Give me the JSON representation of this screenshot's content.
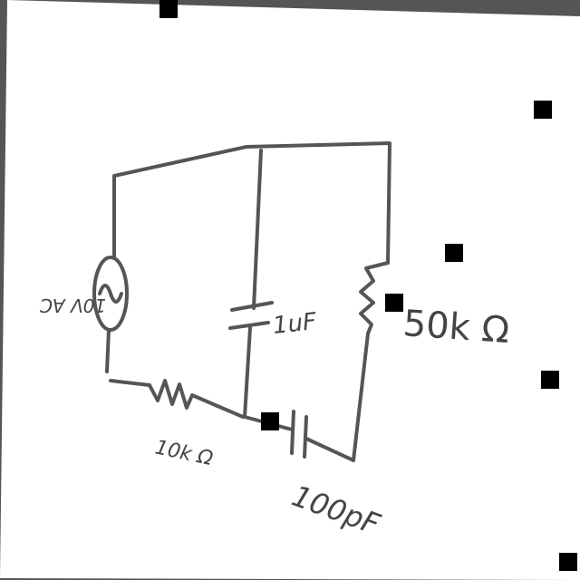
{
  "diagram": {
    "source_label": "10V AC",
    "capacitor_parallel_label": "1uF",
    "resistor_right_label": "50k Ω",
    "resistor_bottom_label": "10k Ω",
    "capacitor_series_label": "100pF"
  },
  "colors": {
    "paper": "#ffffff",
    "ink": "#444444",
    "border": "#555555",
    "marker": "#000000"
  }
}
